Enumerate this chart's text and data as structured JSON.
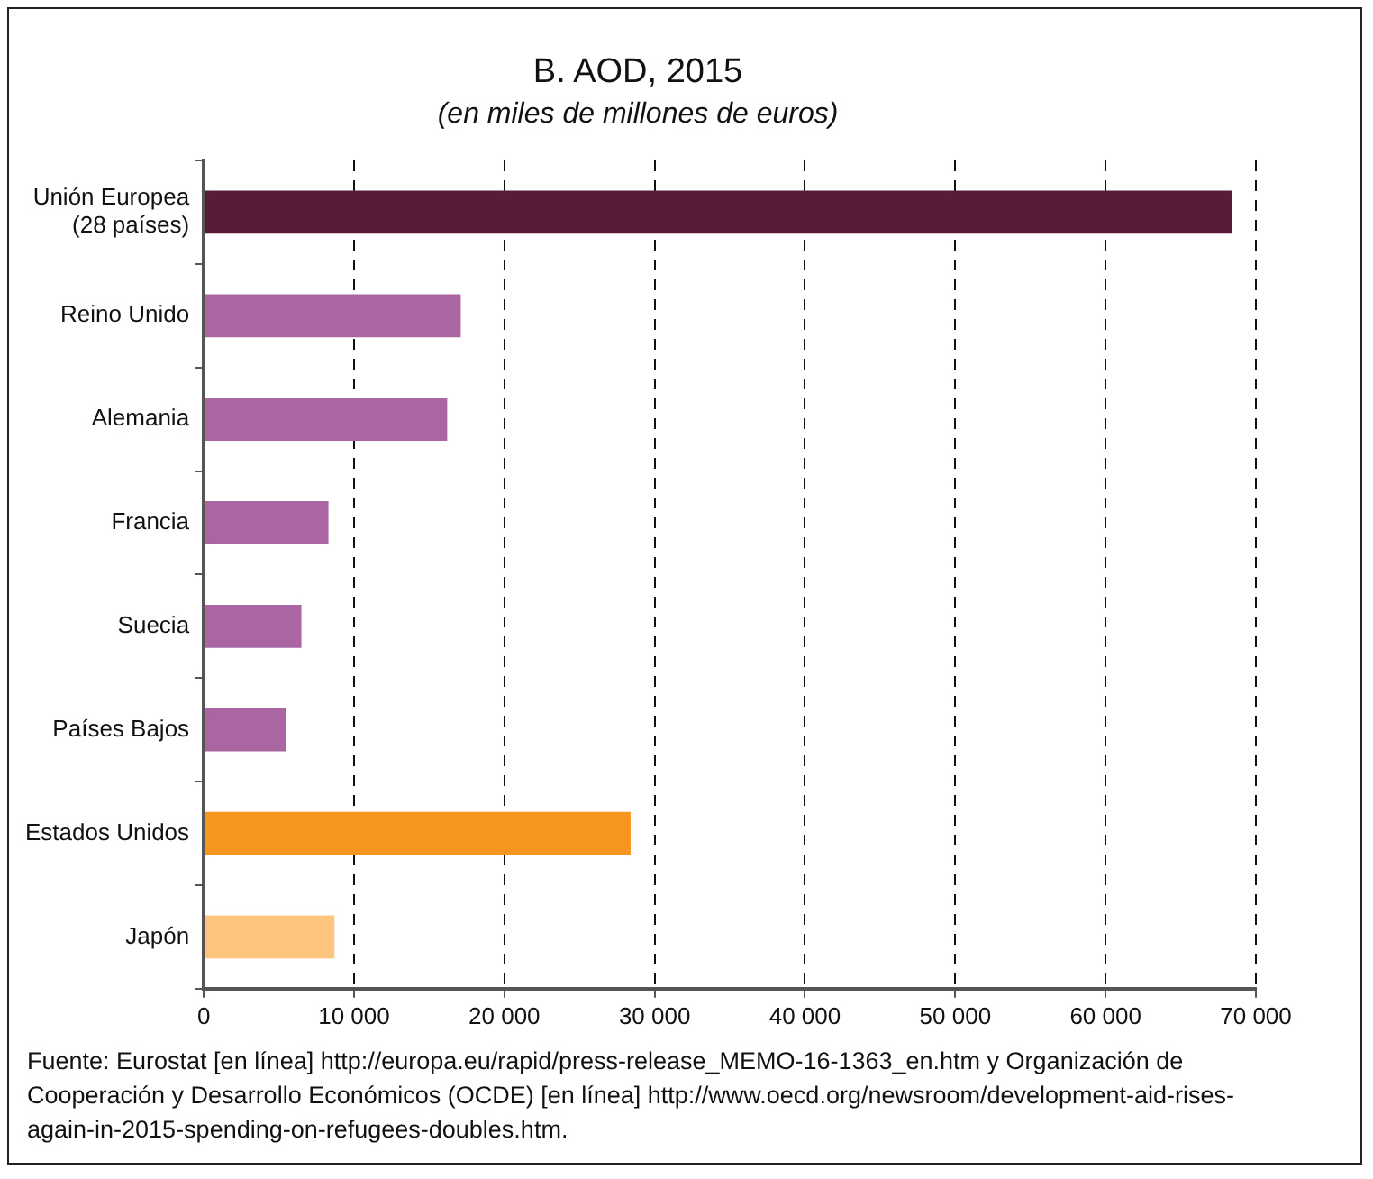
{
  "chart_data": {
    "type": "bar",
    "orientation": "horizontal",
    "title": "B. AOD, 2015",
    "subtitle": "(en miles de millones de euros)",
    "categories": [
      [
        "Unión Europea",
        "(28 países)"
      ],
      "Reino Unido",
      "Alemania",
      "Francia",
      "Suecia",
      "Países Bajos",
      "Estados Unidos",
      "Japón"
    ],
    "values": [
      68400,
      17100,
      16200,
      8300,
      6500,
      5500,
      28400,
      8700
    ],
    "colors": [
      "#561c3a",
      "#a966a3",
      "#a966a3",
      "#a966a3",
      "#a966a3",
      "#a966a3",
      "#f7961f",
      "#fdc57e"
    ],
    "xlim": [
      0,
      70000
    ],
    "xticks": [
      {
        "value": 0,
        "label": "0"
      },
      {
        "value": 10000,
        "label": "10 000"
      },
      {
        "value": 20000,
        "label": "20 000"
      },
      {
        "value": 30000,
        "label": "30 000"
      },
      {
        "value": 40000,
        "label": "40 000"
      },
      {
        "value": 50000,
        "label": "50 000"
      },
      {
        "value": 60000,
        "label": "60 000"
      },
      {
        "value": 70000,
        "label": "70 000"
      }
    ],
    "grid": "x",
    "legend": false,
    "annotations": [
      "Fuente: Eurostat [en línea] http://europa.eu/rapid/press-release_MEMO-16-1363_en.htm y Organización de Cooperación y Desarrollo Económicos (OCDE) [en línea] http://www.oecd.org/newsroom/development-aid-rises-again-in-2015-spending-on-refugees-doubles.htm."
    ]
  }
}
